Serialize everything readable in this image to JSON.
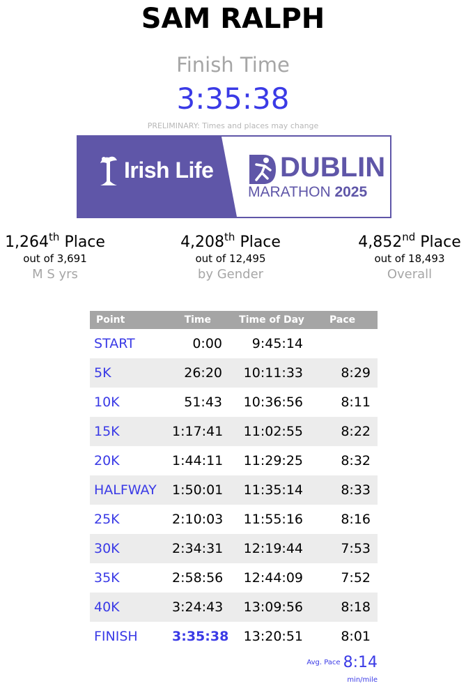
{
  "runner": {
    "name": "SAM RALPH"
  },
  "finish": {
    "label": "Finish Time",
    "time": "3:35:38",
    "notice": "PRELIMINARY: Times and places may change"
  },
  "banner": {
    "sponsor": "Irish Life",
    "event_word": "DUBLIN",
    "event_sub_prefix": "MARATHON",
    "event_year": "2025",
    "colors": {
      "brand": "#5f56a8"
    }
  },
  "places": [
    {
      "value": "1,264",
      "suffix": "th",
      "word": "Place",
      "out_of": "out of 3,691",
      "category": "M S yrs"
    },
    {
      "value": "4,208",
      "suffix": "th",
      "word": "Place",
      "out_of": "out of 12,495",
      "category": "by Gender"
    },
    {
      "value": "4,852",
      "suffix": "nd",
      "word": "Place",
      "out_of": "out of 18,493",
      "category": "Overall"
    }
  ],
  "splits": {
    "headers": [
      "Point",
      "Time",
      "Time of Day",
      "Pace"
    ],
    "rows": [
      {
        "point": "START",
        "time": "0:00",
        "tod": "9:45:14",
        "pace": ""
      },
      {
        "point": "5K",
        "time": "26:20",
        "tod": "10:11:33",
        "pace": "8:29"
      },
      {
        "point": "10K",
        "time": "51:43",
        "tod": "10:36:56",
        "pace": "8:11"
      },
      {
        "point": "15K",
        "time": "1:17:41",
        "tod": "11:02:55",
        "pace": "8:22"
      },
      {
        "point": "20K",
        "time": "1:44:11",
        "tod": "11:29:25",
        "pace": "8:32"
      },
      {
        "point": "HALFWAY",
        "time": "1:50:01",
        "tod": "11:35:14",
        "pace": "8:33"
      },
      {
        "point": "25K",
        "time": "2:10:03",
        "tod": "11:55:16",
        "pace": "8:16"
      },
      {
        "point": "30K",
        "time": "2:34:31",
        "tod": "12:19:44",
        "pace": "7:53"
      },
      {
        "point": "35K",
        "time": "2:58:56",
        "tod": "12:44:09",
        "pace": "7:52"
      },
      {
        "point": "40K",
        "time": "3:24:43",
        "tod": "13:09:56",
        "pace": "8:18"
      },
      {
        "point": "FINISH",
        "time": "3:35:38",
        "tod": "13:20:51",
        "pace": "8:01"
      }
    ]
  },
  "average": {
    "label": "Avg. Pace",
    "value": "8:14",
    "unit": "min/mile"
  },
  "colors": {
    "accent": "#3a3ae6",
    "muted": "#a6a6a6",
    "header_bg": "#a5a5a5",
    "stripe": "#ececec"
  }
}
